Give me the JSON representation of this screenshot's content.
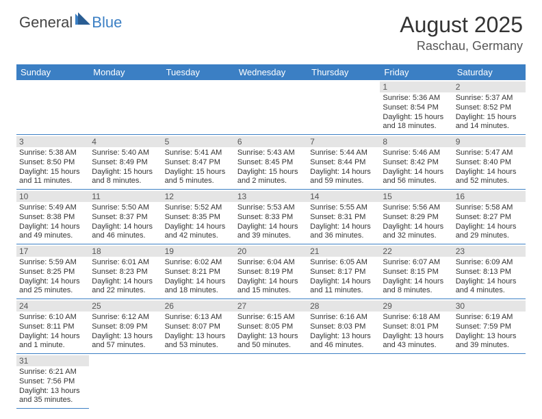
{
  "logo": {
    "main": "General",
    "blue": "Blue"
  },
  "title": "August 2025",
  "location": "Raschau, Germany",
  "colors": {
    "header_bg": "#3b7fc4",
    "header_text": "#ffffff",
    "daynum_bg": "#e5e5e5",
    "cell_border": "#3b7fc4",
    "body_text": "#333333"
  },
  "weekdays": [
    "Sunday",
    "Monday",
    "Tuesday",
    "Wednesday",
    "Thursday",
    "Friday",
    "Saturday"
  ],
  "first_weekday_index": 5,
  "days": [
    {
      "n": 1,
      "sunrise": "5:36 AM",
      "sunset": "8:54 PM",
      "daylight": "15 hours and 18 minutes."
    },
    {
      "n": 2,
      "sunrise": "5:37 AM",
      "sunset": "8:52 PM",
      "daylight": "15 hours and 14 minutes."
    },
    {
      "n": 3,
      "sunrise": "5:38 AM",
      "sunset": "8:50 PM",
      "daylight": "15 hours and 11 minutes."
    },
    {
      "n": 4,
      "sunrise": "5:40 AM",
      "sunset": "8:49 PM",
      "daylight": "15 hours and 8 minutes."
    },
    {
      "n": 5,
      "sunrise": "5:41 AM",
      "sunset": "8:47 PM",
      "daylight": "15 hours and 5 minutes."
    },
    {
      "n": 6,
      "sunrise": "5:43 AM",
      "sunset": "8:45 PM",
      "daylight": "15 hours and 2 minutes."
    },
    {
      "n": 7,
      "sunrise": "5:44 AM",
      "sunset": "8:44 PM",
      "daylight": "14 hours and 59 minutes."
    },
    {
      "n": 8,
      "sunrise": "5:46 AM",
      "sunset": "8:42 PM",
      "daylight": "14 hours and 56 minutes."
    },
    {
      "n": 9,
      "sunrise": "5:47 AM",
      "sunset": "8:40 PM",
      "daylight": "14 hours and 52 minutes."
    },
    {
      "n": 10,
      "sunrise": "5:49 AM",
      "sunset": "8:38 PM",
      "daylight": "14 hours and 49 minutes."
    },
    {
      "n": 11,
      "sunrise": "5:50 AM",
      "sunset": "8:37 PM",
      "daylight": "14 hours and 46 minutes."
    },
    {
      "n": 12,
      "sunrise": "5:52 AM",
      "sunset": "8:35 PM",
      "daylight": "14 hours and 42 minutes."
    },
    {
      "n": 13,
      "sunrise": "5:53 AM",
      "sunset": "8:33 PM",
      "daylight": "14 hours and 39 minutes."
    },
    {
      "n": 14,
      "sunrise": "5:55 AM",
      "sunset": "8:31 PM",
      "daylight": "14 hours and 36 minutes."
    },
    {
      "n": 15,
      "sunrise": "5:56 AM",
      "sunset": "8:29 PM",
      "daylight": "14 hours and 32 minutes."
    },
    {
      "n": 16,
      "sunrise": "5:58 AM",
      "sunset": "8:27 PM",
      "daylight": "14 hours and 29 minutes."
    },
    {
      "n": 17,
      "sunrise": "5:59 AM",
      "sunset": "8:25 PM",
      "daylight": "14 hours and 25 minutes."
    },
    {
      "n": 18,
      "sunrise": "6:01 AM",
      "sunset": "8:23 PM",
      "daylight": "14 hours and 22 minutes."
    },
    {
      "n": 19,
      "sunrise": "6:02 AM",
      "sunset": "8:21 PM",
      "daylight": "14 hours and 18 minutes."
    },
    {
      "n": 20,
      "sunrise": "6:04 AM",
      "sunset": "8:19 PM",
      "daylight": "14 hours and 15 minutes."
    },
    {
      "n": 21,
      "sunrise": "6:05 AM",
      "sunset": "8:17 PM",
      "daylight": "14 hours and 11 minutes."
    },
    {
      "n": 22,
      "sunrise": "6:07 AM",
      "sunset": "8:15 PM",
      "daylight": "14 hours and 8 minutes."
    },
    {
      "n": 23,
      "sunrise": "6:09 AM",
      "sunset": "8:13 PM",
      "daylight": "14 hours and 4 minutes."
    },
    {
      "n": 24,
      "sunrise": "6:10 AM",
      "sunset": "8:11 PM",
      "daylight": "14 hours and 1 minute."
    },
    {
      "n": 25,
      "sunrise": "6:12 AM",
      "sunset": "8:09 PM",
      "daylight": "13 hours and 57 minutes."
    },
    {
      "n": 26,
      "sunrise": "6:13 AM",
      "sunset": "8:07 PM",
      "daylight": "13 hours and 53 minutes."
    },
    {
      "n": 27,
      "sunrise": "6:15 AM",
      "sunset": "8:05 PM",
      "daylight": "13 hours and 50 minutes."
    },
    {
      "n": 28,
      "sunrise": "6:16 AM",
      "sunset": "8:03 PM",
      "daylight": "13 hours and 46 minutes."
    },
    {
      "n": 29,
      "sunrise": "6:18 AM",
      "sunset": "8:01 PM",
      "daylight": "13 hours and 43 minutes."
    },
    {
      "n": 30,
      "sunrise": "6:19 AM",
      "sunset": "7:59 PM",
      "daylight": "13 hours and 39 minutes."
    },
    {
      "n": 31,
      "sunrise": "6:21 AM",
      "sunset": "7:56 PM",
      "daylight": "13 hours and 35 minutes."
    }
  ]
}
